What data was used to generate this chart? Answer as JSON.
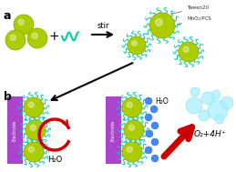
{
  "bg_color": "#ffffff",
  "panel_a_label": "a",
  "panel_b_label": "b",
  "sphere_color": "#aacc00",
  "sphere_edge": "#88aa00",
  "tween_color": "#00ccaa",
  "water_dot_color": "#4488ff",
  "electrode_color": "#aa44cc",
  "bubble_color": "#aaeeff",
  "arrow_color": "#cc0000",
  "stir_label": "stir",
  "tween20_label": "Tween20",
  "mno2_label": "MnO₂/PCS",
  "h2o_label": "H₂O",
  "o2_label": "O₂+4H⁺",
  "electrode_label": "Electrode"
}
